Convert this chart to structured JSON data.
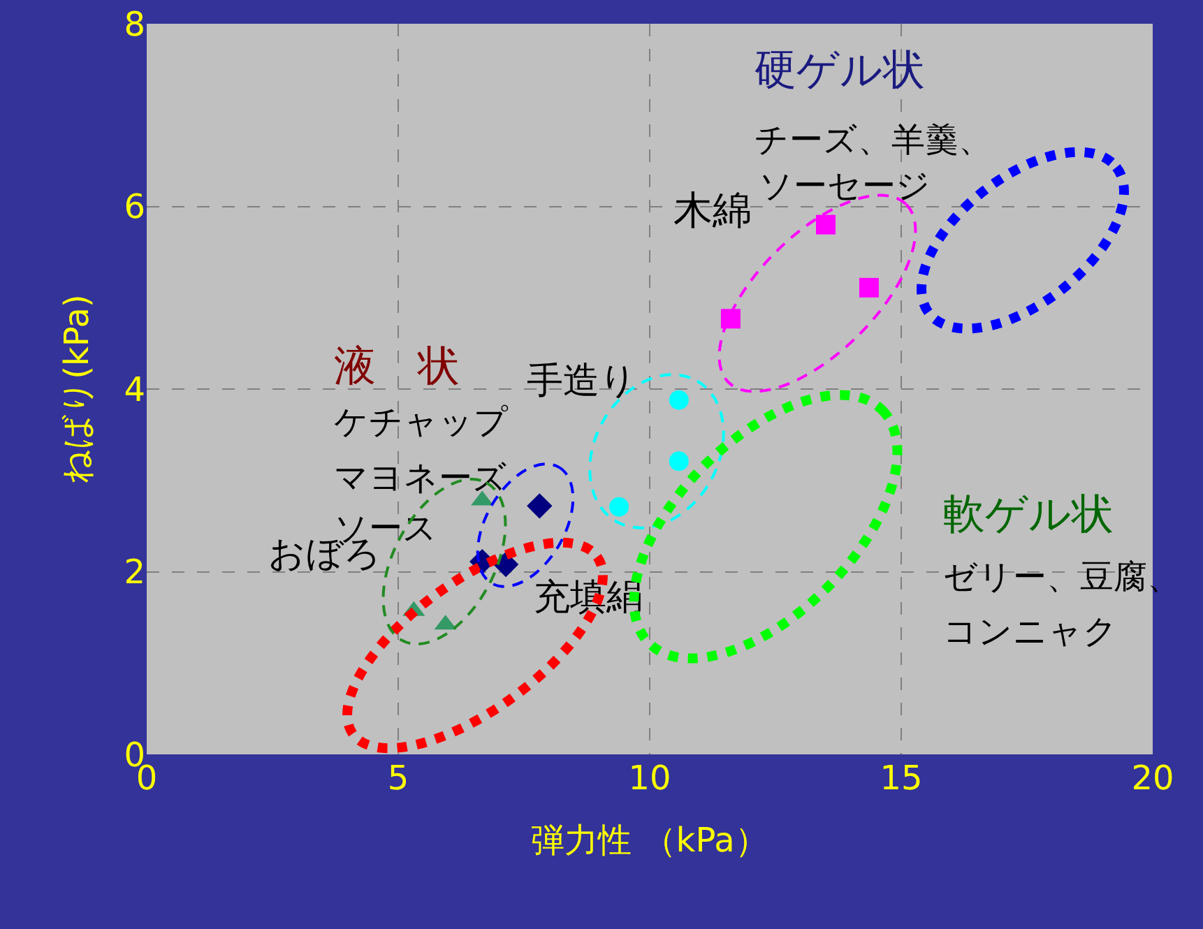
{
  "chart_data": {
    "type": "scatter",
    "xlabel": "弾力性 （kPa）",
    "ylabel": "ねばり(kPa)",
    "xlim": [
      0,
      20
    ],
    "xticks": [
      0,
      5,
      10,
      15,
      20
    ],
    "ylim": [
      0,
      8
    ],
    "yticks": [
      0,
      2,
      4,
      6,
      8
    ],
    "grid": true,
    "series": [
      {
        "color": "#339966",
        "marker": "triangle",
        "x": [
          6.67,
          5.31,
          5.94
        ],
        "values": [
          2.78,
          1.57,
          1.42
        ]
      },
      {
        "color": "#000080",
        "marker": "diamond",
        "x": [
          7.81,
          6.67,
          7.14
        ],
        "values": [
          2.72,
          2.11,
          2.08
        ]
      },
      {
        "color": "#00ffff",
        "marker": "circle",
        "x": [
          9.39,
          10.58,
          10.58
        ],
        "values": [
          2.71,
          3.21,
          3.88
        ]
      },
      {
        "color": "#ff00ff",
        "marker": "square",
        "x": [
          11.61,
          13.5,
          14.36
        ],
        "values": [
          4.77,
          5.8,
          5.11
        ]
      }
    ],
    "annotations": [
      "硬ゲル状",
      "チーズ、羊羹、",
      "ソーセージ",
      "木綿",
      "手造り",
      "液　状",
      "ケチャップ",
      "マヨネーズ",
      "ソース",
      "おぼろ",
      "充填絹",
      "軟ゲル状",
      "ゼリー、豆腐、",
      "コンニャク"
    ]
  }
}
